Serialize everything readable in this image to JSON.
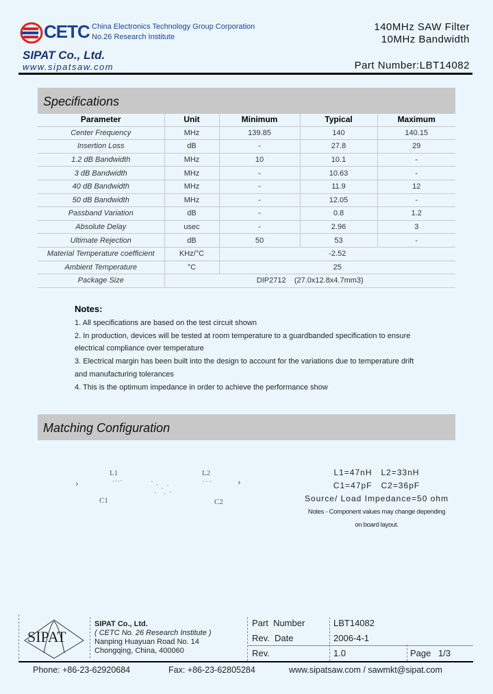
{
  "header": {
    "logo_text": "CETC",
    "corp_line1": "China Electronics Technology Group Corporation",
    "corp_line2": "No.26 Research Institute",
    "product_line1": "140MHz SAW Filter",
    "product_line2": "10MHz Bandwidth",
    "company": "SIPAT Co., Ltd.",
    "website": "www.sipatsaw.com",
    "part_number": "Part Number:LBT14082"
  },
  "specifications": {
    "title": "Specifications",
    "columns": [
      "Parameter",
      "Unit",
      "Minimum",
      "Typical",
      "Maximum"
    ],
    "rows": [
      [
        "Center Frequency",
        "MHz",
        "139.85",
        "140",
        "140.15"
      ],
      [
        "Insertion Loss",
        "dB",
        "-",
        "27.8",
        "29"
      ],
      [
        "1.2 dB Bandwidth",
        "MHz",
        "10",
        "10.1",
        "-"
      ],
      [
        "3 dB Bandwidth",
        "MHz",
        "-",
        "10.63",
        "-"
      ],
      [
        "40 dB Bandwidth",
        "MHz",
        "-",
        "11.9",
        "12"
      ],
      [
        "50 dB Bandwidth",
        "MHz",
        "-",
        "12.05",
        "-"
      ],
      [
        "Passband Variation",
        "dB",
        "-",
        "0.8",
        "1.2"
      ],
      [
        "Absolute Delay",
        "usec",
        "-",
        "2.96",
        "3"
      ],
      [
        "Ultimate Rejection",
        "dB",
        "50",
        "53",
        "-"
      ]
    ],
    "span_rows": [
      [
        "Material Temperature coefficient",
        "KHz/°C",
        "-2.52"
      ],
      [
        "Ambient Temperature",
        "°C",
        "25"
      ]
    ],
    "package": [
      "Package Size",
      "DIP2712    (27.0x12.8x4.7mm3)"
    ]
  },
  "notes": {
    "title": "Notes:",
    "lines": [
      "1. All specifications are based on the test circuit shown",
      "2. In production, devices will be tested at room temperature to a guardbanded specification to ensure",
      "electrical compliance over temperature",
      "3. Electrical margin has been built into the design to account for the variations due to temperature drift",
      "and manufacturing tolerances",
      "4. This is the optimum impedance in order to achieve the performance show"
    ]
  },
  "matching": {
    "title": "Matching Configuration",
    "labels": {
      "l1": "L1",
      "l2": "L2",
      "c1": "C1",
      "c2": "C2"
    },
    "values_line1": "L1=47nH   L2=33nH",
    "values_line2": "C1=47pF   C2=36pF",
    "impedance": "Source/ Load Impedance=50 ohm",
    "note_line1": "Notes - Component values may change depending",
    "note_line2": "on board layout."
  },
  "footer": {
    "logo_text": "SIPAT",
    "company": "SIPAT Co., Ltd.",
    "institute": "( CETC No. 26 Research Institute )",
    "address1": "Nanping Huayuan Road No. 14",
    "address2": "Chongqing, China, 400060",
    "part_number_label": "Part  Number",
    "part_number": "LBT14082",
    "rev_date_label": "Rev.  Date",
    "rev_date": "2006-4-1",
    "rev_label": "Rev.",
    "rev": "1.0",
    "page_label": "Page",
    "page": "1/3",
    "phone": "Phone:  +86-23-62920684",
    "fax": "Fax:  +86-23-62805284",
    "web_email": "www.sipatsaw.com  /  sawmkt@sipat.com"
  }
}
